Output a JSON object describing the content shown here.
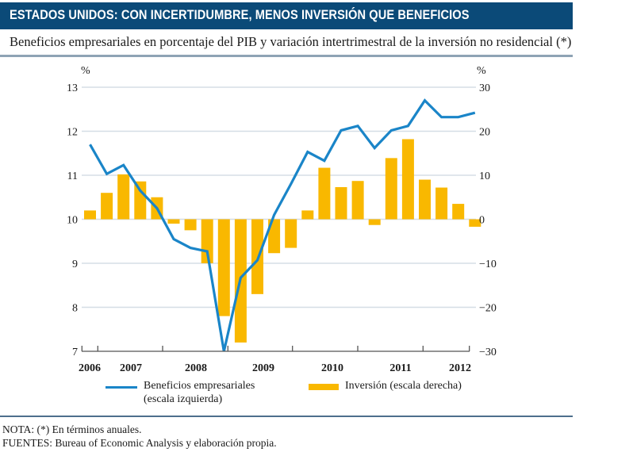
{
  "header": {
    "title": "ESTADOS UNIDOS: CON INCERTIDUMBRE, MENOS INVERSIÓN QUE BENEFICIOS",
    "subtitle": "Beneficios empresariales en porcentaje del PIB y variación intertrimestral de la inversión no residencial (*)"
  },
  "legend": {
    "line_label_1": "Beneficios empresariales",
    "line_label_2": "(escala izquierda)",
    "bar_label": "Inversión (escala derecha)"
  },
  "footer": {
    "note": "NOTA: (*) En términos anuales.",
    "sources": "FUENTES: Bureau of Economic Analysis y elaboración propia."
  },
  "colors": {
    "header_bg": "#0b4a78",
    "line": "#1a85c8",
    "bars": "#f9b800",
    "grid": "#d5dde5"
  },
  "chart_data": {
    "type": "bar+line",
    "title": "ESTADOS UNIDOS: CON INCERTIDUMBRE, MENOS INVERSIÓN QUE BENEFICIOS",
    "subtitle": "Beneficios empresariales en porcentaje del PIB y variación intertrimestral de la inversión no residencial (*)",
    "x_unit": "quarter",
    "x_tick_labels": [
      "2006",
      "2007",
      "2008",
      "2009",
      "2010",
      "2011",
      "2012"
    ],
    "left_axis": {
      "label": "%",
      "ylim": [
        7,
        13
      ],
      "ticks": [
        "7",
        "8",
        "9",
        "10",
        "11",
        "12",
        "13"
      ]
    },
    "right_axis": {
      "label": "%",
      "ylim": [
        -30,
        30
      ],
      "ticks": [
        "−30",
        "−20",
        "−10",
        "0",
        "10",
        "20",
        "30"
      ]
    },
    "grid": true,
    "legend_position": "bottom",
    "series": [
      {
        "name": "Beneficios empresariales (escala izquierda)",
        "type": "line",
        "axis": "left",
        "values": [
          11.7,
          11.03,
          11.23,
          10.65,
          10.25,
          9.55,
          9.35,
          9.27,
          7.0,
          8.67,
          9.07,
          10.1,
          10.8,
          11.53,
          11.33,
          12.02,
          12.12,
          11.62,
          12.02,
          12.12,
          12.7,
          12.32,
          12.32,
          12.42
        ]
      },
      {
        "name": "Inversión (escala derecha)",
        "type": "bar",
        "axis": "right",
        "values": [
          2.0,
          6.0,
          10.2,
          8.6,
          5.0,
          -1.0,
          -2.5,
          -10.0,
          -22.0,
          -28.0,
          -17.0,
          -7.7,
          -6.5,
          2.0,
          11.7,
          7.3,
          8.7,
          -1.3,
          13.9,
          18.2,
          9.0,
          7.2,
          3.5,
          -1.7
        ]
      }
    ]
  }
}
